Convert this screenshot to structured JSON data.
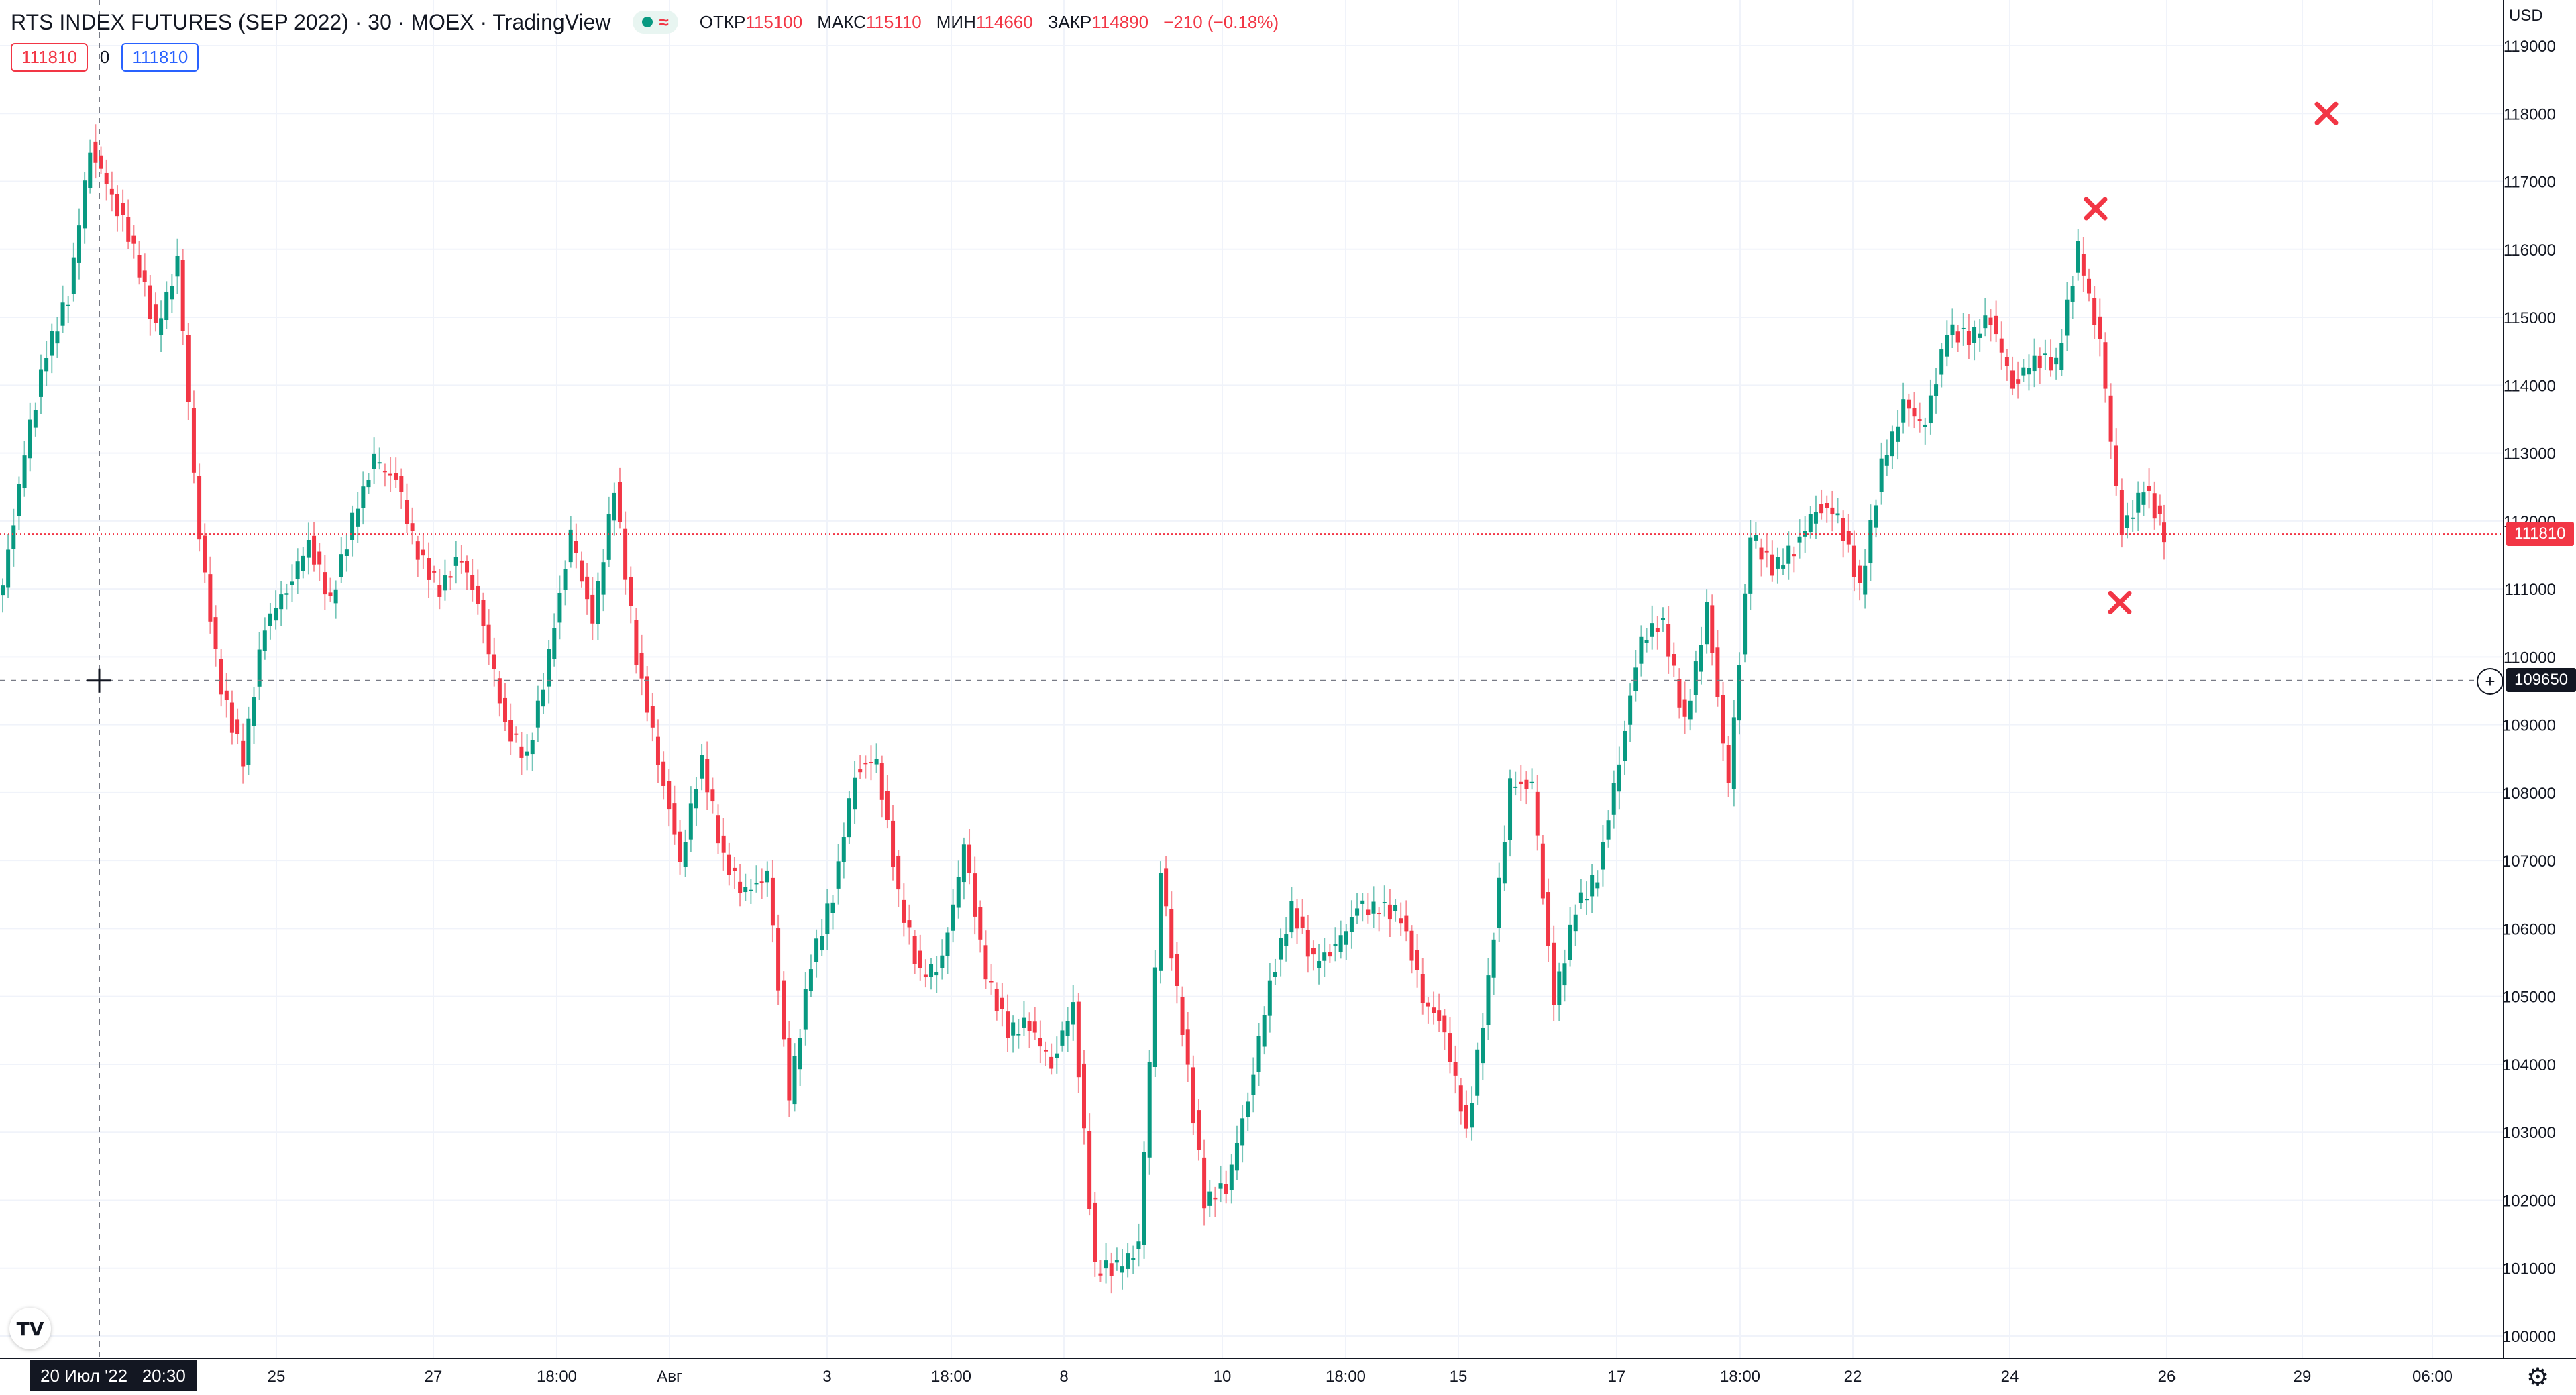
{
  "header": {
    "symbol": "RTS INDEX FUTURES (SEP 2022) · 30 · MOEX · TradingView",
    "ohlc": [
      {
        "label": "ОТКР",
        "value": "115100"
      },
      {
        "label": "МАКС",
        "value": "115110"
      },
      {
        "label": "МИН",
        "value": "114660"
      },
      {
        "label": "ЗАКР",
        "value": "114890"
      }
    ],
    "change": "−210 (−0.18%)",
    "status_icons": [
      "market-open-dot-icon",
      "data-delay-wave-icon"
    ]
  },
  "price_boxes": {
    "sell": "111810",
    "spread": "0",
    "buy": "111810"
  },
  "currency": "USD",
  "price_axis": {
    "labels": [
      "119000",
      "118000",
      "117000",
      "116000",
      "115000",
      "114000",
      "113000",
      "112000",
      "111000",
      "110000",
      "109000",
      "108000",
      "107000",
      "106000",
      "105000",
      "104000",
      "103000",
      "102000",
      "101000",
      "100000"
    ],
    "last_price_tag": "111810",
    "crosshair_price_tag": "109650",
    "colors": {
      "down": "#f23645",
      "up": "#089981",
      "grid": "#f0f3fa",
      "tag_dark": "#131722"
    }
  },
  "time_axis": {
    "labels": [
      "25",
      "27",
      "18:00",
      "Авг",
      "3",
      "18:00",
      "8",
      "10",
      "18:00",
      "15",
      "17",
      "18:00",
      "22",
      "24",
      "26",
      "29",
      "06:00"
    ],
    "crosshair_date": "20 Июл '22",
    "crosshair_time": "20:30"
  },
  "markers": {
    "type": "x-cross",
    "color": "#f23645"
  },
  "chart_data": {
    "type": "candlestick",
    "interval_minutes": 30,
    "ylim": [
      100000,
      119000
    ],
    "series": [
      {
        "name": "RTS INDEX FUTURES (SEP 2022)",
        "close": [
          111000,
          113000,
          114500,
          115300,
          117500,
          116800,
          116000,
          114800,
          115800,
          111700,
          109500,
          108500,
          110500,
          111000,
          111700,
          110800,
          112000,
          112900,
          112600,
          111500,
          111000,
          111500,
          110500,
          109000,
          108500,
          110000,
          111800,
          110500,
          112500,
          110000,
          108500,
          107000,
          108500,
          107000,
          106500,
          106800,
          103500,
          105500,
          106500,
          108300,
          108500,
          106500,
          105300,
          105500,
          107200,
          105300,
          104500,
          104600,
          104000,
          104900,
          101000,
          101000,
          101300,
          106800,
          104500,
          102000,
          102200,
          103500,
          105200,
          106300,
          105500,
          105700,
          106300,
          106300,
          106200,
          105000,
          104500,
          103000,
          105200,
          108100,
          108100,
          104900,
          106300,
          106800,
          108500,
          110300,
          110500,
          109000,
          110700,
          108100,
          111800,
          111300,
          111600,
          112200,
          112100,
          111000,
          112800,
          113700,
          113400,
          114800,
          114700,
          115000,
          114000,
          114400,
          114300,
          116000,
          114600,
          111800,
          112500,
          111810
        ]
      }
    ]
  }
}
